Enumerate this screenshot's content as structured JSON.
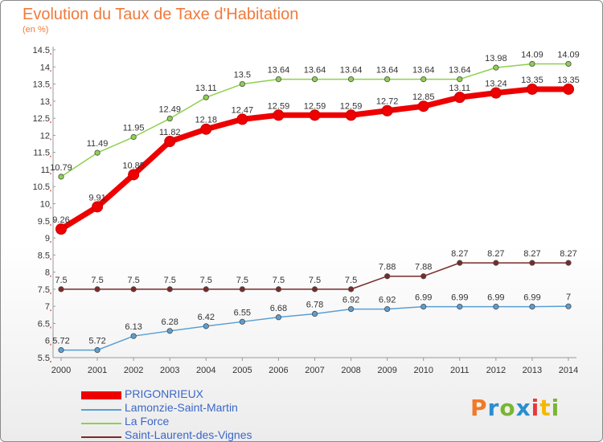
{
  "title": "Evolution du Taux de Taxe d'Habitation",
  "subtitle": "(en %)",
  "logo": {
    "text": "Proxiti",
    "colors": [
      "#f07a28",
      "#2a8ed0",
      "#7ab532",
      "#2a8ed0",
      "#e8383c",
      "#f5b800",
      "#7ab532"
    ]
  },
  "chart_data": {
    "type": "line",
    "x": [
      "2000",
      "2001",
      "2002",
      "2003",
      "2004",
      "2005",
      "2006",
      "2007",
      "2008",
      "2009",
      "2010",
      "2011",
      "2012",
      "2013",
      "2014"
    ],
    "ylim": [
      5.5,
      14.5
    ],
    "yticks": [
      "5.5",
      "6",
      "6.5",
      "7",
      "7.5",
      "8",
      "8.5",
      "9",
      "9.5",
      "10",
      "10.5",
      "11",
      "11.5",
      "12",
      "12.5",
      "13",
      "13.5",
      "14",
      "14.5"
    ],
    "grid": false,
    "legend_position": "bottom-left",
    "series": [
      {
        "name": "PRIGONRIEUX",
        "color": "#ee0000",
        "width": 7,
        "marker": 6.5,
        "values": [
          9.26,
          9.91,
          10.85,
          11.82,
          12.18,
          12.47,
          12.59,
          12.59,
          12.59,
          12.72,
          12.85,
          13.11,
          13.24,
          13.35,
          13.35
        ],
        "labels": [
          "9.26",
          "9.91",
          "10.85",
          "11.82",
          "12.18",
          "12.47",
          "12.59",
          "12.59",
          "12.59",
          "12.72",
          "12.85",
          "13.11",
          "13.24",
          "13.35",
          "13.35"
        ]
      },
      {
        "name": "Lamonzie-Saint-Martin",
        "color": "#5a9fd4",
        "width": 1.5,
        "marker": 3.2,
        "values": [
          5.72,
          5.72,
          6.13,
          6.28,
          6.42,
          6.55,
          6.68,
          6.78,
          6.92,
          6.92,
          6.99,
          6.99,
          6.99,
          6.99,
          7
        ],
        "labels": [
          "5.72",
          "5.72",
          "6.13",
          "6.28",
          "6.42",
          "6.55",
          "6.68",
          "6.78",
          "6.92",
          "6.92",
          "6.99",
          "6.99",
          "6.99",
          "6.99",
          "7"
        ]
      },
      {
        "name": "La Force",
        "color": "#8ed04e",
        "width": 1.5,
        "marker": 3.2,
        "values": [
          10.79,
          11.49,
          11.95,
          12.49,
          13.11,
          13.5,
          13.64,
          13.64,
          13.64,
          13.64,
          13.64,
          13.64,
          13.98,
          14.09,
          14.09
        ],
        "labels": [
          "10.79",
          "11.49",
          "11.95",
          "12.49",
          "13.11",
          "13.5",
          "13.64",
          "13.64",
          "13.64",
          "13.64",
          "13.64",
          "13.64",
          "13.98",
          "14.09",
          "14.09"
        ]
      },
      {
        "name": "Saint-Laurent-des-Vignes",
        "color": "#7a2a2a",
        "width": 1.5,
        "marker": 3.2,
        "values": [
          7.5,
          7.5,
          7.5,
          7.5,
          7.5,
          7.5,
          7.5,
          7.5,
          7.5,
          7.88,
          7.88,
          8.27,
          8.27,
          8.27,
          8.27
        ],
        "labels": [
          "7.5",
          "7.5",
          "7.5",
          "7.5",
          "7.5",
          "7.5",
          "7.5",
          "7.5",
          "7.5",
          "7.88",
          "7.88",
          "8.27",
          "8.27",
          "8.27",
          "8.27"
        ]
      }
    ]
  }
}
